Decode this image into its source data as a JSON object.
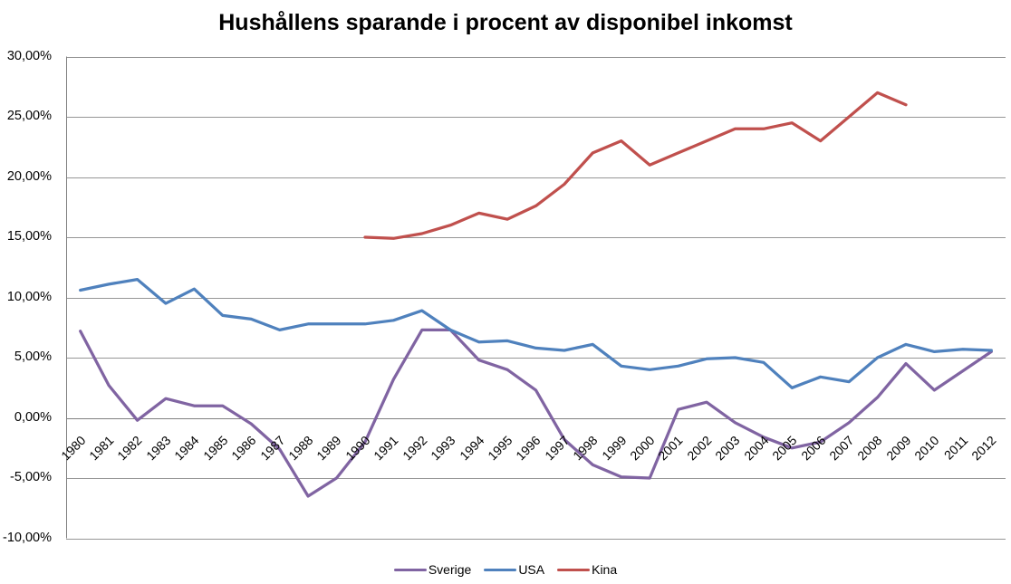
{
  "title": "Hushållens sparande i procent av disponibel inkomst",
  "chart_data": {
    "type": "line",
    "x": [
      1980,
      1981,
      1982,
      1983,
      1984,
      1985,
      1986,
      1987,
      1988,
      1989,
      1990,
      1991,
      1992,
      1993,
      1994,
      1995,
      1996,
      1997,
      1998,
      1999,
      2000,
      2001,
      2002,
      2003,
      2004,
      2005,
      2006,
      2007,
      2008,
      2009,
      2010,
      2011,
      2012
    ],
    "series": [
      {
        "name": "Sverige",
        "color": "#8064A2",
        "values": [
          7.2,
          2.7,
          -0.2,
          1.6,
          1.0,
          1.0,
          -0.5,
          -2.6,
          -6.5,
          -5.0,
          -2.0,
          3.2,
          7.3,
          7.3,
          4.8,
          4.0,
          2.3,
          -1.8,
          -3.9,
          -4.9,
          -5.0,
          0.7,
          1.3,
          -0.4,
          -1.6,
          -2.5,
          -2.0,
          -0.4,
          1.7,
          4.5,
          2.3,
          3.9,
          5.5
        ]
      },
      {
        "name": "USA",
        "color": "#4F81BD",
        "values": [
          10.6,
          11.1,
          11.5,
          9.5,
          10.7,
          8.5,
          8.2,
          7.3,
          7.8,
          7.8,
          7.8,
          8.1,
          8.9,
          7.3,
          6.3,
          6.4,
          5.8,
          5.6,
          6.1,
          4.3,
          4.0,
          4.3,
          4.9,
          5.0,
          4.6,
          2.5,
          3.4,
          3.0,
          5.0,
          6.1,
          5.5,
          5.7,
          5.6
        ]
      },
      {
        "name": "Kina",
        "color": "#C0504D",
        "values": [
          null,
          null,
          null,
          null,
          null,
          null,
          null,
          null,
          null,
          null,
          15.0,
          14.9,
          15.3,
          16.0,
          17.0,
          16.5,
          17.6,
          19.4,
          22.0,
          23.0,
          21.0,
          22.0,
          23.0,
          24.0,
          24.0,
          24.5,
          23.0,
          25.0,
          27.0,
          26.0,
          null,
          null,
          null
        ]
      }
    ],
    "ylim": [
      -10,
      30
    ],
    "ytick_step": 5,
    "ytick_labels": [
      "30,00%",
      "25,00%",
      "20,00%",
      "15,00%",
      "10,00%",
      "5,00%",
      "0,00%",
      "-5,00%",
      "-10,00%"
    ],
    "grid": true,
    "legend_position": "bottom",
    "gridline_color": "#969696",
    "axis_color": "#808080"
  }
}
